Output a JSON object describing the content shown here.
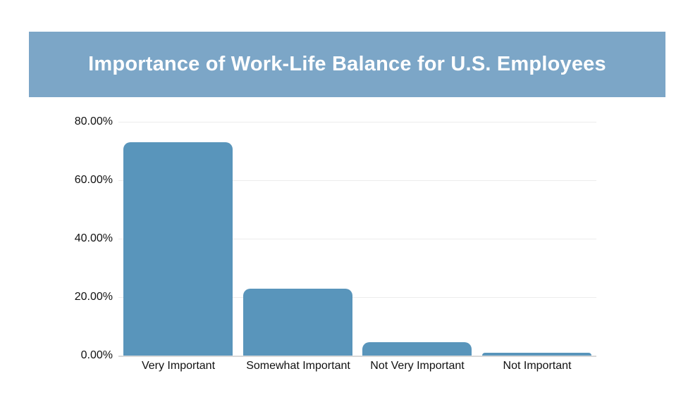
{
  "header": {
    "title": "Importance of Work-Life Balance for U.S. Employees"
  },
  "colors": {
    "banner_bg": "#7CA6C7",
    "title_text": "#FFFFFF",
    "bar_fill": "#5995BB",
    "gridline": "#ECECEC",
    "axis_line": "#D9D9D9",
    "tick_text": "#111111"
  },
  "chart_data": {
    "type": "bar",
    "title": "Importance of Work-Life Balance for U.S. Employees",
    "categories": [
      "Very Important",
      "Somewhat Important",
      "Not Very Important",
      "Not Important"
    ],
    "values": [
      73,
      23,
      4.5,
      1
    ],
    "xlabel": "",
    "ylabel": "",
    "ylim": [
      0,
      80
    ],
    "yticks": [
      0,
      20,
      40,
      60,
      80
    ],
    "ytick_labels": [
      "0.00%",
      "20.00%",
      "40.00%",
      "60.00%",
      "80.00%"
    ],
    "grid": true,
    "legend": false
  }
}
